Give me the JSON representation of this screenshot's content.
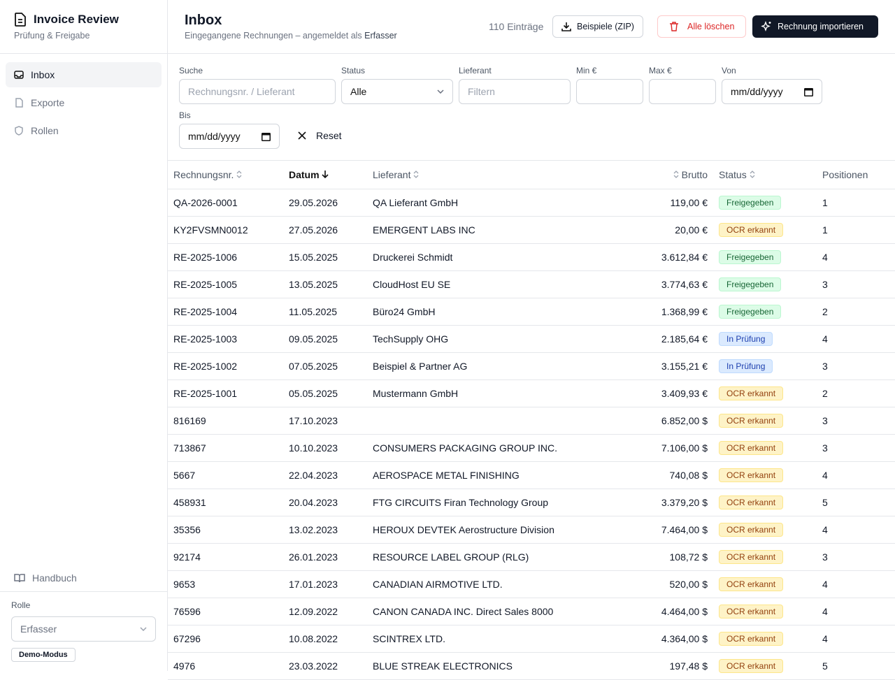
{
  "sidebar": {
    "title": "Invoice Review",
    "subtitle": "Prüfung & Freigabe",
    "nav": [
      "Inbox",
      "Exporte",
      "Rollen"
    ],
    "manual": "Handbuch",
    "role_label": "Rolle",
    "role_value": "Erfasser",
    "mode_badge": "Demo-Modus"
  },
  "header": {
    "title": "Inbox",
    "subtitle": "Eingegangene Rechnungen – angemeldet als",
    "subtitle_role": "Erfasser",
    "count": "110 Einträge",
    "buttons": [
      "Beispiele (ZIP)",
      "Alle löschen",
      "Rechnung importieren"
    ]
  },
  "filters": {
    "search": {
      "label": "Suche",
      "placeholder": "Rechnungsnr. / Lieferant"
    },
    "status": {
      "label": "Status",
      "value": "Alle"
    },
    "supplier": {
      "label": "Lieferant",
      "placeholder": "Filtern"
    },
    "min": {
      "label": "Min €"
    },
    "max": {
      "label": "Max €"
    },
    "from": {
      "label": "Von",
      "placeholder": "mm/dd/yyyy"
    },
    "to": {
      "label": "Bis",
      "placeholder": "mm/dd/yyyy"
    },
    "reset": "Reset"
  },
  "table": {
    "columns": [
      "Rechnungsnr.",
      "Datum",
      "Lieferant",
      "Brutto",
      "Status",
      "Positionen"
    ],
    "status_colors": {
      "Freigegeben": {
        "bg": "#dcfce7",
        "fg": "#166534",
        "border": "#bbf7d0"
      },
      "OCR erkannt": {
        "bg": "#fef3c7",
        "fg": "#92400e",
        "border": "#fde68a"
      },
      "In Prüfung": {
        "bg": "#dbeafe",
        "fg": "#1e40af",
        "border": "#bfdbfe"
      }
    },
    "rows": [
      [
        "QA-2026-0001",
        "29.05.2026",
        "QA Lieferant GmbH",
        "119,00 €",
        "Freigegeben",
        1
      ],
      [
        "KY2FVSMN0012",
        "27.05.2026",
        "EMERGENT LABS INC",
        "20,00 €",
        "OCR erkannt",
        1
      ],
      [
        "RE-2025-1006",
        "15.05.2025",
        "Druckerei Schmidt",
        "3.612,84 €",
        "Freigegeben",
        4
      ],
      [
        "RE-2025-1005",
        "13.05.2025",
        "CloudHost EU SE",
        "3.774,63 €",
        "Freigegeben",
        3
      ],
      [
        "RE-2025-1004",
        "11.05.2025",
        "Büro24 GmbH",
        "1.368,99 €",
        "Freigegeben",
        2
      ],
      [
        "RE-2025-1003",
        "09.05.2025",
        "TechSupply OHG",
        "2.185,64 €",
        "In Prüfung",
        4
      ],
      [
        "RE-2025-1002",
        "07.05.2025",
        "Beispiel & Partner AG",
        "3.155,21 €",
        "In Prüfung",
        3
      ],
      [
        "RE-2025-1001",
        "05.05.2025",
        "Mustermann GmbH",
        "3.409,93 €",
        "OCR erkannt",
        2
      ],
      [
        "816169",
        "17.10.2023",
        null,
        "6.852,00 $",
        "OCR erkannt",
        3
      ],
      [
        "713867",
        "10.10.2023",
        "CONSUMERS PACKAGING GROUP INC.",
        "7.106,00 $",
        "OCR erkannt",
        3
      ],
      [
        "5667",
        "22.04.2023",
        "AEROSPACE METAL FINISHING",
        "740,08 $",
        "OCR erkannt",
        4
      ],
      [
        "458931",
        "20.04.2023",
        "FTG CIRCUITS Firan Technology Group",
        "3.379,20 $",
        "OCR erkannt",
        5
      ],
      [
        "35356",
        "13.02.2023",
        "HEROUX DEVTEK Aerostructure Division",
        "7.464,00 $",
        "OCR erkannt",
        4
      ],
      [
        "92174",
        "26.01.2023",
        "RESOURCE LABEL GROUP (RLG)",
        "108,72 $",
        "OCR erkannt",
        3
      ],
      [
        "9653",
        "17.01.2023",
        "CANADIAN AIRMOTIVE LTD.",
        "520,00 $",
        "OCR erkannt",
        4
      ],
      [
        "76596",
        "12.09.2022",
        "CANON CANADA INC. Direct Sales 8000",
        "4.464,00 $",
        "OCR erkannt",
        4
      ],
      [
        "67296",
        "10.08.2022",
        "SCINTREX LTD.",
        "4.364,00 $",
        "OCR erkannt",
        4
      ],
      [
        "4976",
        "23.03.2022",
        "BLUE STREAK ELECTRONICS",
        "197,48 $",
        "OCR erkannt",
        5
      ]
    ]
  }
}
